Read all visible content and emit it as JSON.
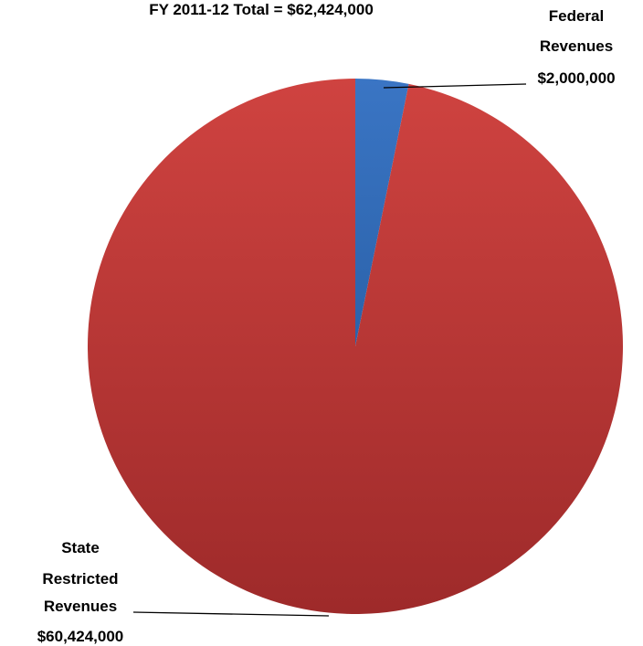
{
  "chart_data": {
    "type": "pie",
    "title": "FY 2011-12 Total = $62,424,000",
    "series": [
      {
        "name": "Federal Revenues",
        "value": 2000000,
        "display": "$2,000,000",
        "label_lines": [
          "Federal",
          "Revenues",
          "$2,000,000"
        ],
        "color": "#3a75c4",
        "color_dark": "#2b62aa"
      },
      {
        "name": "State Restricted Revenues",
        "value": 60424000,
        "display": "$60,424,000",
        "label_lines": [
          "State",
          "Restricted",
          "Revenues",
          "$60,424,000"
        ],
        "color": "#cf4340",
        "color_dark": "#9e2a2a"
      }
    ],
    "start_angle": "12 o'clock, clockwise",
    "legend": "none",
    "data_labels": "outside with leader lines"
  }
}
